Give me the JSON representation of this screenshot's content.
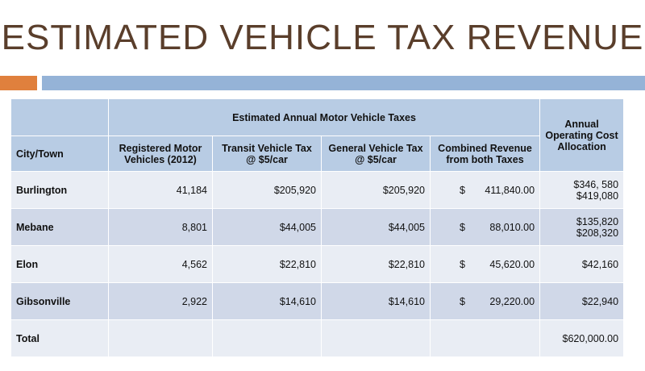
{
  "slide": {
    "title": "ESTIMATED VEHICLE TAX REVENUE",
    "accent_orange": "#e0803d",
    "accent_blue": "#95b3d7"
  },
  "table": {
    "group_header": "Estimated Annual Motor Vehicle Taxes",
    "annual_header": "Annual Operating Cost Allocation",
    "columns": {
      "city": "City/Town",
      "registered": "Registered Motor Vehicles (2012)",
      "transit": "Transit Vehicle Tax @ $5/car",
      "general": "General Vehicle Tax @ $5/car",
      "combined": "Combined Revenue from both Taxes"
    },
    "rows": [
      {
        "city": "Burlington",
        "registered": "41,184",
        "transit": "$205,920",
        "general": "$205,920",
        "combined_symbol": "$",
        "combined": "411,840.00",
        "annual_line1": "$346, 580",
        "annual_line2": "$419,080"
      },
      {
        "city": "Mebane",
        "registered": "8,801",
        "transit": "$44,005",
        "general": "$44,005",
        "combined_symbol": "$",
        "combined": "88,010.00",
        "annual_line1": "$135,820",
        "annual_line2": "$208,320"
      },
      {
        "city": "Elon",
        "registered": "4,562",
        "transit": "$22,810",
        "general": "$22,810",
        "combined_symbol": "$",
        "combined": "45,620.00",
        "annual_line1": "$42,160",
        "annual_line2": ""
      },
      {
        "city": "Gibsonville",
        "registered": "2,922",
        "transit": "$14,610",
        "general": "$14,610",
        "combined_symbol": "$",
        "combined": "29,220.00",
        "annual_line1": "$22,940",
        "annual_line2": ""
      }
    ],
    "total": {
      "label": "Total",
      "annual": "$620,000.00"
    }
  }
}
